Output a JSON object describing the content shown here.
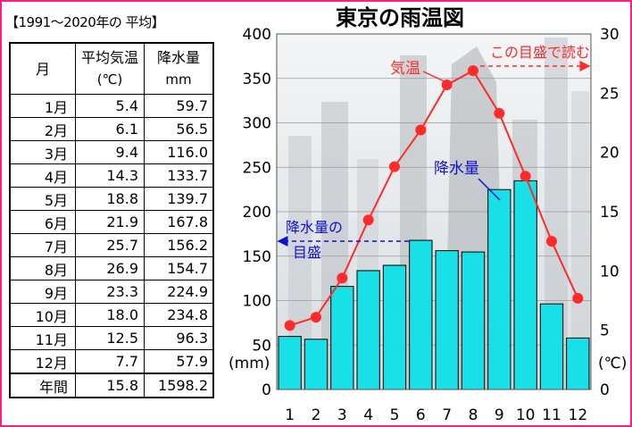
{
  "table": {
    "caption": "【1991～2020年の 平均】",
    "headers": {
      "month": "月",
      "temp_line1": "平均気温",
      "temp_line2": "(℃)",
      "precip_line1": "降水量",
      "precip_line2": "mm"
    },
    "rows": [
      {
        "month": "1月",
        "temp": "5.4",
        "precip": "59.7"
      },
      {
        "month": "2月",
        "temp": "6.1",
        "precip": "56.5"
      },
      {
        "month": "3月",
        "temp": "9.4",
        "precip": "116.0"
      },
      {
        "month": "4月",
        "temp": "14.3",
        "precip": "133.7"
      },
      {
        "month": "5月",
        "temp": "18.8",
        "precip": "139.7"
      },
      {
        "month": "6月",
        "temp": "21.9",
        "precip": "167.8"
      },
      {
        "month": "7月",
        "temp": "25.7",
        "precip": "156.2"
      },
      {
        "month": "8月",
        "temp": "26.9",
        "precip": "154.7"
      },
      {
        "month": "9月",
        "temp": "23.3",
        "precip": "224.9"
      },
      {
        "month": "10月",
        "temp": "18.0",
        "precip": "234.8"
      },
      {
        "month": "11月",
        "temp": "12.5",
        "precip": "96.3"
      },
      {
        "month": "12月",
        "temp": "7.7",
        "precip": "57.9"
      }
    ],
    "total": {
      "label": "年間",
      "temp": "15.8",
      "precip": "1598.2"
    }
  },
  "chart_data": {
    "type": "bar+line",
    "title": "東京の雨温図",
    "categories": [
      "1",
      "2",
      "3",
      "4",
      "5",
      "6",
      "7",
      "8",
      "9",
      "10",
      "11",
      "12"
    ],
    "series": [
      {
        "name": "降水量",
        "type": "bar",
        "axis": "left",
        "unit": "(mm)",
        "values": [
          59.7,
          56.5,
          116.0,
          133.7,
          139.7,
          167.8,
          156.2,
          154.7,
          224.9,
          234.8,
          96.3,
          57.9
        ]
      },
      {
        "name": "気温",
        "type": "line",
        "axis": "right",
        "unit": "(℃)",
        "values": [
          5.4,
          6.1,
          9.4,
          14.3,
          18.8,
          21.9,
          25.7,
          26.9,
          23.3,
          18.0,
          12.5,
          7.7
        ]
      }
    ],
    "left_axis": {
      "range": [
        0,
        400
      ],
      "ticks": [
        "0",
        "50",
        "100",
        "150",
        "200",
        "250",
        "300",
        "350",
        "400"
      ],
      "unit_label": "(mm)"
    },
    "right_axis": {
      "range": [
        0,
        30
      ],
      "ticks": [
        "0",
        "5",
        "10",
        "15",
        "20",
        "25",
        "30"
      ],
      "unit_label": "(℃)"
    },
    "annotations": {
      "temp_label": "気温",
      "temp_axis_note": "この目盛で読む",
      "precip_label": "降水量",
      "precip_axis_note_line1": "降水量の",
      "precip_axis_note_line2": "目盛"
    },
    "colors": {
      "bar": "#19e0e6",
      "bar_border": "#000000",
      "line": "#ff2a2a",
      "precip_note": "#1010d0",
      "temp_note": "#ff2a2a",
      "frame": "#ff1f7f"
    }
  }
}
